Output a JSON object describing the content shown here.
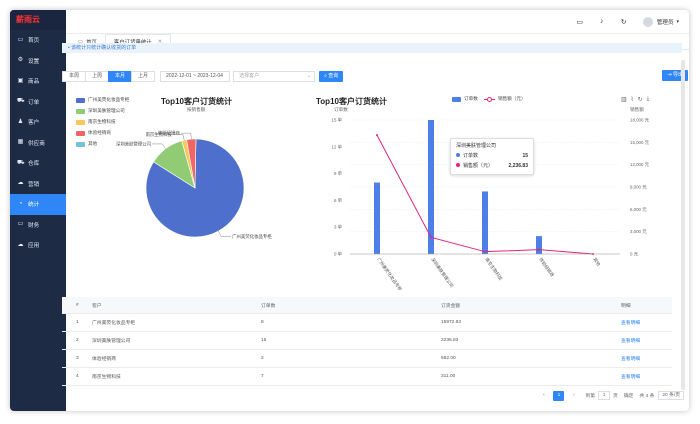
{
  "app": {
    "logo": "薪雨云"
  },
  "sidebar": {
    "items": [
      {
        "label": "首页",
        "icon": "monitor-icon",
        "glyph": "▭"
      },
      {
        "label": "设置",
        "icon": "gear-icon",
        "glyph": "⚙"
      },
      {
        "label": "商品",
        "icon": "box-icon",
        "glyph": "▣"
      },
      {
        "label": "订单",
        "icon": "cart-icon",
        "glyph": "⛟"
      },
      {
        "label": "客户",
        "icon": "user-icon",
        "glyph": "♟"
      },
      {
        "label": "供应商",
        "icon": "supplier-icon",
        "glyph": "▦"
      },
      {
        "label": "仓库",
        "icon": "truck-icon",
        "glyph": "⛟"
      },
      {
        "label": "营销",
        "icon": "cloud-icon",
        "glyph": "☁"
      },
      {
        "label": "统计",
        "icon": "chart-icon",
        "glyph": "◔"
      },
      {
        "label": "财务",
        "icon": "card-icon",
        "glyph": "▭"
      },
      {
        "label": "应用",
        "icon": "cloud-icon",
        "glyph": "☁"
      }
    ],
    "active_index": 8
  },
  "topbar": {
    "user": "管理员"
  },
  "tabs": [
    {
      "label": "首页",
      "active": false
    },
    {
      "label": "客户订货量统计",
      "active": true
    }
  ],
  "notice": "• 该统计只统计确认收货的订单",
  "filters": {
    "periods": [
      "本周",
      "上周",
      "本月",
      "上月"
    ],
    "active_period": 2,
    "date_range": "2022-12-01 ~ 2023-12-04",
    "customer_placeholder": "选择客户",
    "query_label": "查询",
    "export_label": "导出"
  },
  "pie": {
    "title": "Top10客户订货统计",
    "subtitle": "按销售额"
  },
  "combo": {
    "title": "Top10客户订货统计",
    "y_left_label": "订单数",
    "y_right_label": "销售额",
    "legend_bar": "订单数",
    "legend_line": "销售额（元）"
  },
  "tooltip": {
    "title": "深圳美肤管理公司",
    "label_count": "订单数",
    "value_count": "15",
    "label_amount": "销售额（元）",
    "value_amount": "2,236.83"
  },
  "chart_data": [
    {
      "type": "pie",
      "title": "Top10客户订货统计",
      "subtitle": "按销售额",
      "legend_placement": "top-left",
      "slices": [
        {
          "name": "广州美荧化妆品专柜",
          "value": 15972.83,
          "color": "#4e6fcb"
        },
        {
          "name": "深圳美肤管理公司",
          "value": 2236.83,
          "color": "#91cc75"
        },
        {
          "name": "南京生物科技",
          "value": 311.0,
          "color": "#fac858"
        },
        {
          "name": "体验经销商",
          "value": 582.0,
          "color": "#ee6666"
        },
        {
          "name": "其他",
          "value": 0,
          "color": "#73c0de"
        }
      ]
    },
    {
      "type": "bar",
      "title": "Top10客户订货统计",
      "categories": [
        "广州美荧化妆品专柜",
        "深圳美肤管理公司",
        "南京生物科技",
        "体验经销商",
        "其他"
      ],
      "series": [
        {
          "name": "订单数",
          "type": "bar",
          "axis": "left",
          "values": [
            8,
            15,
            7,
            2,
            0
          ],
          "color": "#4e7fe8"
        },
        {
          "name": "销售额（元）",
          "type": "line",
          "axis": "right",
          "values": [
            15972.83,
            2236.83,
            311.0,
            582.0,
            0
          ],
          "color": "#e3227f"
        }
      ],
      "ylabel_left": "订单数",
      "ylabel_right": "销售额",
      "left_ticks": [
        "0 单",
        "3 单",
        "6 单",
        "9 单",
        "12 单",
        "15 单"
      ],
      "right_ticks": [
        "0 元",
        "3,000 元",
        "6,000 元",
        "9,000 元",
        "12,000 元",
        "15,000 元",
        "18,000 元"
      ],
      "ylim_left": [
        0,
        15
      ],
      "ylim_right": [
        0,
        18000
      ],
      "legend_placement": "top-center"
    }
  ],
  "table": {
    "headers": [
      "#",
      "客户",
      "订单数",
      "订货金额",
      "明细"
    ],
    "rows": [
      {
        "idx": "1",
        "customer": "广州美荧化妆品专柜",
        "orders": "8",
        "amount": "15972.83",
        "action": "查看明细"
      },
      {
        "idx": "2",
        "customer": "深圳美肤管理公司",
        "orders": "15",
        "amount": "2236.83",
        "action": "查看明细"
      },
      {
        "idx": "3",
        "customer": "体验经销商",
        "orders": "2",
        "amount": "582.00",
        "action": "查看明细"
      },
      {
        "idx": "4",
        "customer": "南京生物科技",
        "orders": "7",
        "amount": "311.00",
        "action": "查看明细"
      }
    ]
  },
  "pager": {
    "prev": "‹",
    "current": "1",
    "next": "›",
    "goto_label": "到第",
    "goto_value": "1",
    "page_unit": "页",
    "confirm": "确定",
    "total": "共 4 条",
    "page_size": "20 条/页"
  }
}
